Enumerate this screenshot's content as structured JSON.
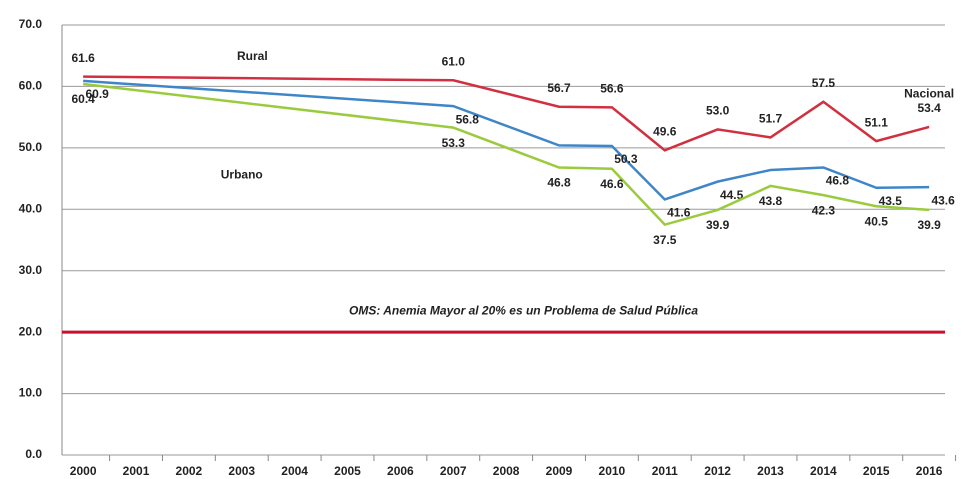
{
  "chart_data": {
    "type": "line",
    "x": [
      2000,
      2007,
      2009,
      2010,
      2011,
      2012,
      2013,
      2014,
      2015,
      2016
    ],
    "xlim": [
      1999.6,
      2016.3
    ],
    "xticks": [
      2000,
      2001,
      2002,
      2003,
      2004,
      2005,
      2006,
      2007,
      2008,
      2009,
      2010,
      2011,
      2012,
      2013,
      2014,
      2015,
      2016
    ],
    "ylim": [
      0,
      70
    ],
    "yticks": [
      {
        "value": 0,
        "label": "0.0"
      },
      {
        "value": 10,
        "label": "10.0"
      },
      {
        "value": 20,
        "label": "20.0"
      },
      {
        "value": 30,
        "label": "30.0"
      },
      {
        "value": 40,
        "label": "40.0"
      },
      {
        "value": 50,
        "label": "50.0"
      },
      {
        "value": 60,
        "label": "60.0"
      },
      {
        "value": 70,
        "label": "70.0"
      }
    ],
    "grid": true,
    "series": [
      {
        "name": "Rural",
        "color": "#d0303f",
        "values": [
          61.6,
          61.0,
          56.7,
          56.6,
          49.6,
          53.0,
          51.7,
          57.5,
          51.1,
          53.4
        ],
        "value_labels": [
          "61.6",
          "61.0",
          "56.7",
          "56.6",
          "49.6",
          "53.0",
          "51.7",
          "57.5",
          "51.1",
          "53.4"
        ]
      },
      {
        "name": "Nacional",
        "color": "#3f86c8",
        "values": [
          60.9,
          56.8,
          50.4,
          50.3,
          41.6,
          44.5,
          46.4,
          46.8,
          43.5,
          43.6
        ],
        "value_labels": [
          "60.9",
          "56.8",
          null,
          "50.3",
          "41.6",
          "44.5",
          null,
          "46.8",
          "43.5",
          "43.6"
        ]
      },
      {
        "name": "Urbano",
        "color": "#9acb3c",
        "values": [
          60.4,
          53.3,
          46.8,
          46.6,
          37.5,
          39.9,
          43.8,
          42.3,
          40.5,
          39.9
        ],
        "value_labels": [
          "60.4",
          "53.3",
          "46.8",
          "46.6",
          "37.5",
          "39.9",
          "43.8",
          "42.3",
          "40.5",
          "39.9"
        ]
      }
    ],
    "reference_line": {
      "value": 20,
      "color": "#c8102e",
      "label": "OMS: Anemia Mayor al 20% es un Problema de Salud Pública"
    }
  }
}
